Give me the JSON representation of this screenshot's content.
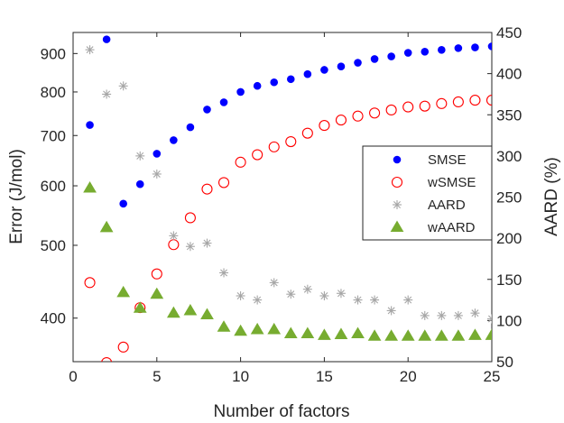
{
  "chart_data": {
    "type": "scatter",
    "title": "",
    "xlabel": "Number of factors",
    "ylabel_left": "Error (J/mol)",
    "ylabel_right": "AARD (%)",
    "xlim": [
      0,
      25
    ],
    "xticks": [
      "0",
      "5",
      "10",
      "15",
      "20",
      "25"
    ],
    "ylim_left": [
      350,
      960
    ],
    "yscale_left": "log",
    "yticks_left": [
      "400",
      "500",
      "600",
      "700",
      "800",
      "900"
    ],
    "ylim_right": [
      50,
      450
    ],
    "yticks_right": [
      "50",
      "100",
      "150",
      "200",
      "250",
      "300",
      "350",
      "400",
      "450"
    ],
    "grid": false,
    "legend_position": "center-right",
    "x": [
      1,
      2,
      3,
      4,
      5,
      6,
      7,
      8,
      9,
      10,
      11,
      12,
      13,
      14,
      15,
      16,
      17,
      18,
      19,
      20,
      21,
      22,
      23,
      24,
      25
    ],
    "series": [
      {
        "name": "SMSE",
        "axis": "left",
        "marker": "filled-circle",
        "color": "#0000ff",
        "values": [
          723,
          940,
          568,
          603,
          662,
          690,
          718,
          758,
          775,
          800,
          815,
          824,
          832,
          845,
          856,
          865,
          875,
          885,
          892,
          902,
          905,
          910,
          915,
          917,
          920
        ]
      },
      {
        "name": "wSMSE",
        "axis": "left",
        "marker": "open-circle",
        "color": "#ff0000",
        "values": [
          446,
          349,
          366,
          413,
          458,
          501,
          544,
          594,
          606,
          645,
          660,
          676,
          687,
          705,
          722,
          734,
          743,
          750,
          757,
          764,
          766,
          772,
          776,
          780,
          780
        ]
      },
      {
        "name": "AARD",
        "axis": "right",
        "marker": "asterisk",
        "color": "#a6a6a6",
        "values": [
          429,
          375,
          385,
          300,
          278,
          203,
          190,
          194,
          158,
          130,
          125,
          146,
          132,
          138,
          130,
          133,
          125,
          125,
          112,
          125,
          106,
          106,
          106,
          109,
          102
        ]
      },
      {
        "name": "wAARD",
        "axis": "right",
        "marker": "filled-triangle",
        "color": "#77ac30",
        "values": [
          261,
          213,
          134,
          115,
          132,
          109,
          112,
          107,
          92,
          87,
          89,
          89,
          84,
          84,
          82,
          83,
          84,
          81,
          81,
          81,
          81,
          81,
          81,
          82,
          82
        ]
      }
    ]
  }
}
